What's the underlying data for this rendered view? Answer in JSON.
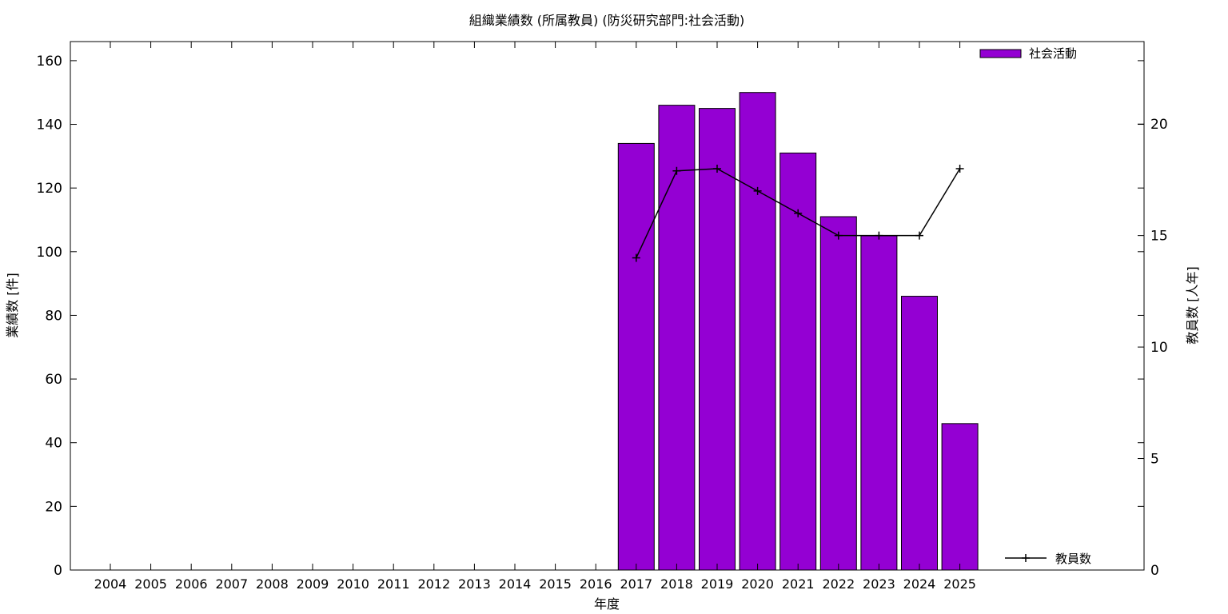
{
  "chart_data": {
    "type": "bar",
    "title": "組織業績数 (所属教員) (防災研究部門:社会活動)",
    "xlabel": "年度",
    "ylabel": "業績数 [件]",
    "y2label": "教員数 [人年]",
    "categories": [
      "2004",
      "2005",
      "2006",
      "2007",
      "2008",
      "2009",
      "2010",
      "2011",
      "2012",
      "2013",
      "2014",
      "2015",
      "2016",
      "2017",
      "2018",
      "2019",
      "2020",
      "2021",
      "2022",
      "2023",
      "2024",
      "2025"
    ],
    "ylim": [
      0,
      166
    ],
    "y2lim": [
      0,
      23.7
    ],
    "yticks": [
      0,
      20,
      40,
      60,
      80,
      100,
      120,
      140,
      160
    ],
    "y2ticks": [
      0,
      5,
      10,
      15,
      20
    ],
    "grid": false,
    "series": [
      {
        "name": "社会活動",
        "type": "bar",
        "axis": "left",
        "color": "#9400d3",
        "values": [
          null,
          null,
          null,
          null,
          null,
          null,
          null,
          null,
          null,
          null,
          null,
          null,
          null,
          134,
          146,
          145,
          150,
          131,
          111,
          105,
          86,
          46
        ]
      },
      {
        "name": "教員数",
        "type": "line",
        "axis": "right",
        "color": "#000000",
        "values": [
          null,
          null,
          null,
          null,
          null,
          null,
          null,
          null,
          null,
          null,
          null,
          null,
          null,
          14,
          17.9,
          18,
          17,
          16,
          15,
          15,
          15,
          18
        ]
      }
    ],
    "legend": {
      "bar_position": "top-right",
      "line_position": "bottom-right"
    }
  }
}
